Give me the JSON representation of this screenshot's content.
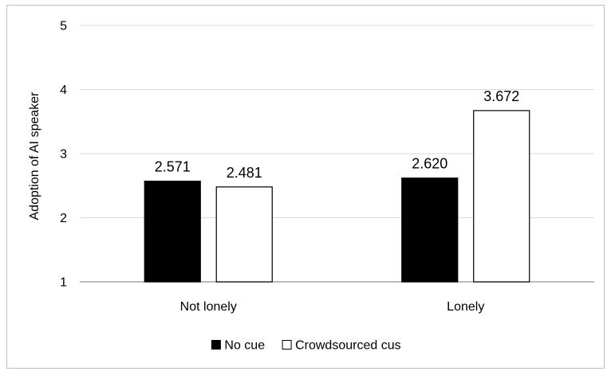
{
  "chart_data": {
    "type": "bar",
    "title": "",
    "xlabel": "",
    "ylabel": "Adoption of AI speaker",
    "ylim": [
      1,
      5
    ],
    "yticks": [
      1,
      2,
      3,
      4,
      5
    ],
    "grid": true,
    "legend_position": "bottom-center",
    "categories": [
      "Not lonely",
      "Lonely"
    ],
    "series": [
      {
        "name": "No cue",
        "values": [
          2.571,
          2.62
        ],
        "labels": [
          "2.571",
          "2.620"
        ],
        "fill": "#000000",
        "stroke": "#000000"
      },
      {
        "name": "Crowdsourced cus",
        "values": [
          2.481,
          3.672
        ],
        "labels": [
          "2.481",
          "3.672"
        ],
        "fill": "#ffffff",
        "stroke": "#000000"
      }
    ]
  }
}
